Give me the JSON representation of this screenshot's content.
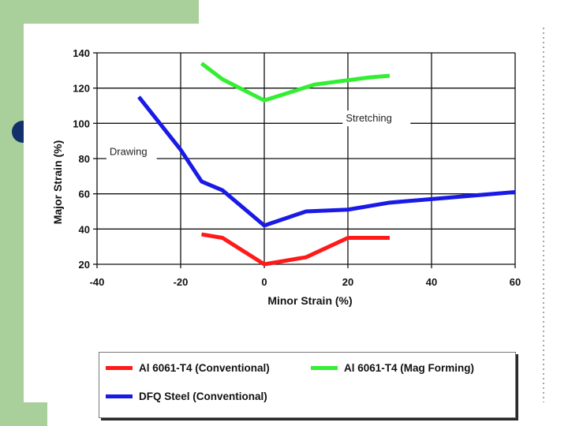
{
  "chart_data": {
    "type": "line",
    "title": "",
    "xlabel": "Minor Strain (%)",
    "ylabel": "Major Strain (%)",
    "xlim": [
      -40,
      60
    ],
    "ylim": [
      20,
      140
    ],
    "xticks": [
      -40,
      -20,
      0,
      20,
      40,
      60
    ],
    "yticks": [
      20,
      40,
      60,
      80,
      100,
      120,
      140
    ],
    "xtick_labels": [
      "-40",
      "-20",
      "0",
      "20",
      "40",
      "60"
    ],
    "ytick_labels": [
      "20",
      "40",
      "60",
      "80",
      "100",
      "120",
      "140"
    ],
    "grid": true,
    "series": [
      {
        "name": "Al 6061-T4 (Conventional)",
        "color": "#ff1a1a",
        "x": [
          -15,
          -10,
          0,
          10,
          20,
          30
        ],
        "y": [
          37,
          35,
          20,
          24,
          35,
          35
        ]
      },
      {
        "name": "Al 6061-T4 (Mag Forming)",
        "color": "#33ee33",
        "x": [
          -15,
          -10,
          0,
          12,
          25,
          30
        ],
        "y": [
          134,
          125,
          113,
          122,
          126,
          127
        ]
      },
      {
        "name": "DFQ Steel (Conventional)",
        "color": "#1a1ae6",
        "x": [
          -30,
          -20,
          -15,
          -10,
          0,
          10,
          20,
          30,
          40,
          50,
          60
        ],
        "y": [
          115,
          85,
          67,
          62,
          42,
          50,
          51,
          55,
          57,
          59,
          61
        ]
      }
    ],
    "annotations": [
      {
        "text": "Drawing",
        "x": -37,
        "y": 82
      },
      {
        "text": "Stretching",
        "x": 19.5,
        "y": 101
      }
    ],
    "legend_position": "bottom"
  }
}
